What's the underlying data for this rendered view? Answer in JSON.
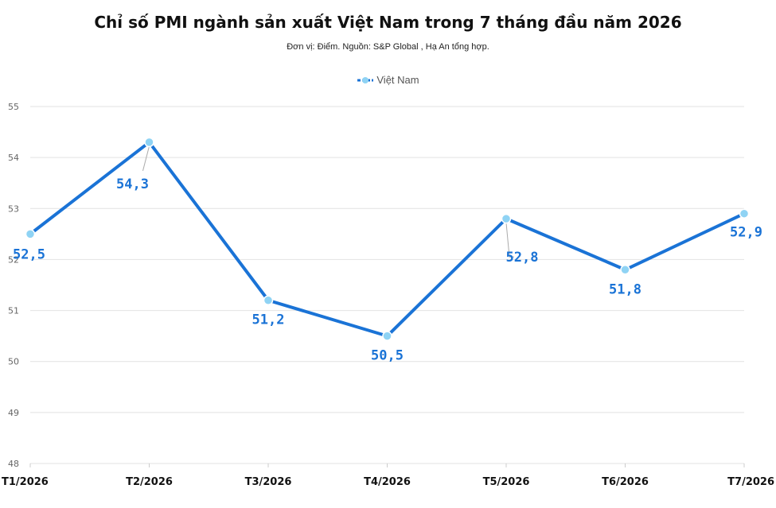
{
  "chart_data": {
    "type": "line",
    "title": "Chỉ số PMI ngành sản xuất Việt Nam trong 7 tháng đầu năm 2026",
    "subtitle": "Đơn vị: Điểm. Nguồn: S&P Global , Hạ An tổng hợp.",
    "categories": [
      "T1/2026",
      "T2/2026",
      "T3/2026",
      "T4/2026",
      "T5/2026",
      "T6/2026",
      "T7/2026"
    ],
    "series": [
      {
        "name": "Việt Nam",
        "values": [
          52.5,
          54.3,
          51.2,
          50.5,
          52.8,
          51.8,
          52.9
        ],
        "labels": [
          "52,5",
          "54,3",
          "51,2",
          "50,5",
          "52,8",
          "51,8",
          "52,9"
        ]
      }
    ],
    "yticks": [
      48,
      49,
      50,
      51,
      52,
      53,
      54,
      55
    ],
    "ylim": [
      48,
      55
    ],
    "grid": true,
    "legend_position": "top-center",
    "colors": {
      "line": "#1a73d6",
      "marker": "#8fd3f4",
      "label": "#1a73d6",
      "grid": "#e2e2e2"
    }
  }
}
